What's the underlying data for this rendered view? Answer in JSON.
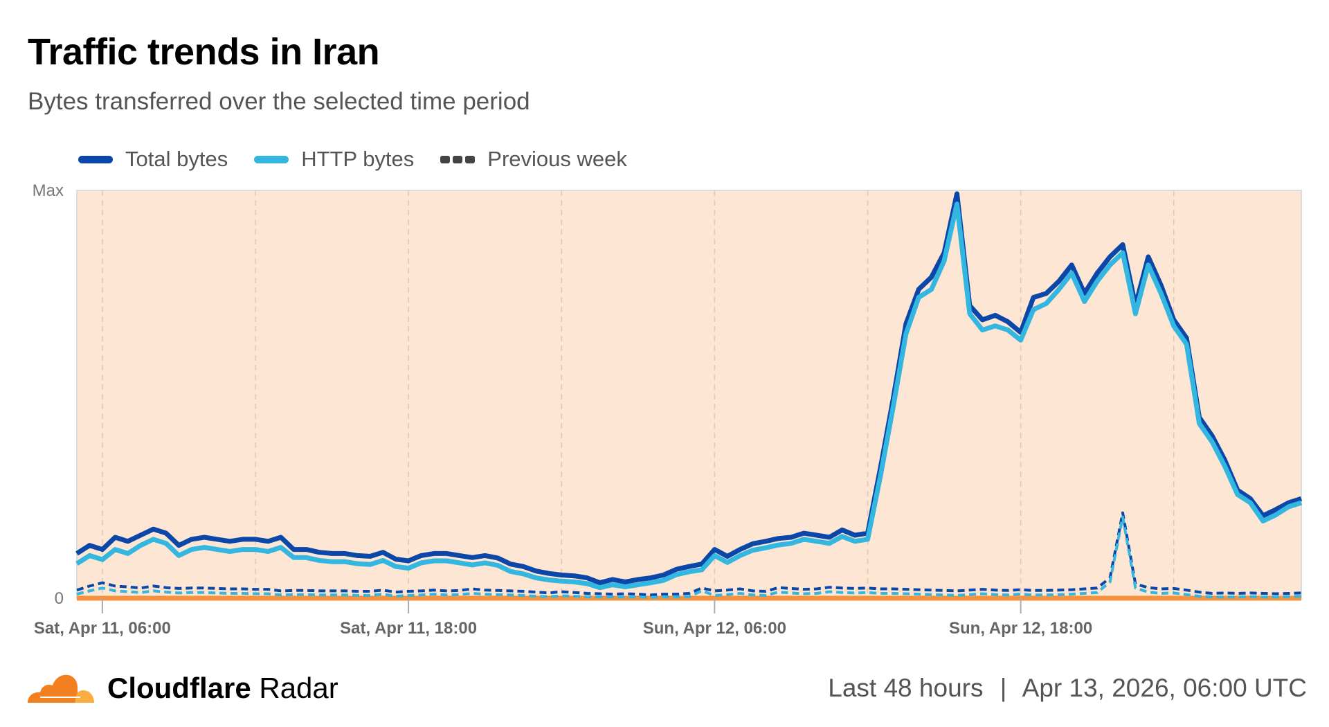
{
  "header": {
    "title": "Traffic trends in Iran",
    "subtitle": "Bytes transferred over the selected time period"
  },
  "legend": [
    {
      "label": "Total bytes",
      "color": "#0a47a8",
      "style": "solid"
    },
    {
      "label": "HTTP bytes",
      "color": "#33b6df",
      "style": "solid"
    },
    {
      "label": "Previous week",
      "color": "#444444",
      "style": "dashed"
    }
  ],
  "footer": {
    "brand_bold": "Cloudflare",
    "brand_regular": "Radar",
    "period": "Last 48 hours",
    "separator": "|",
    "timestamp": "Apr 13, 2026, 06:00 UTC"
  },
  "colors": {
    "plot_background": "#fde6d3",
    "baseline": "#f5923e",
    "gridline": "#e2c7b6",
    "logo_orange": "#f38020",
    "logo_light": "#fbad41"
  },
  "chart_data": {
    "type": "line",
    "title": "Traffic trends in Iran",
    "subtitle": "Bytes transferred over the selected time period",
    "xlabel": "",
    "ylabel": "",
    "y_tick_labels": [
      "0",
      "Max"
    ],
    "ylim": [
      0,
      100
    ],
    "y_units": "percent of max",
    "grid": "vertical dashed every 6 hours",
    "legend_position": "top-left",
    "x_tick_labels": [
      "Sat, Apr 11, 06:00",
      "Sat, Apr 11, 18:00",
      "Sun, Apr 12, 06:00",
      "Sun, Apr 12, 18:00"
    ],
    "x_ticks": [
      "Apr 11 06:00",
      "Apr 11 18:00",
      "Apr 12 06:00",
      "Apr 12 18:00"
    ],
    "x_gridlines": [
      "Apr 11 06:00",
      "Apr 11 12:00",
      "Apr 11 18:00",
      "Apr 12 00:00",
      "Apr 12 06:00",
      "Apr 12 12:00",
      "Apr 12 18:00",
      "Apr 13 00:00"
    ],
    "x": [
      "Apr 11 05:00",
      "Apr 11 05:30",
      "Apr 11 06:00",
      "Apr 11 06:30",
      "Apr 11 07:00",
      "Apr 11 07:30",
      "Apr 11 08:00",
      "Apr 11 08:30",
      "Apr 11 09:00",
      "Apr 11 09:30",
      "Apr 11 10:00",
      "Apr 11 10:30",
      "Apr 11 11:00",
      "Apr 11 11:30",
      "Apr 11 12:00",
      "Apr 11 12:30",
      "Apr 11 13:00",
      "Apr 11 13:30",
      "Apr 11 14:00",
      "Apr 11 14:30",
      "Apr 11 15:00",
      "Apr 11 15:30",
      "Apr 11 16:00",
      "Apr 11 16:30",
      "Apr 11 17:00",
      "Apr 11 17:30",
      "Apr 11 18:00",
      "Apr 11 18:30",
      "Apr 11 19:00",
      "Apr 11 19:30",
      "Apr 11 20:00",
      "Apr 11 20:30",
      "Apr 11 21:00",
      "Apr 11 21:30",
      "Apr 11 22:00",
      "Apr 11 22:30",
      "Apr 11 23:00",
      "Apr 11 23:30",
      "Apr 12 00:00",
      "Apr 12 00:30",
      "Apr 12 01:00",
      "Apr 12 01:30",
      "Apr 12 02:00",
      "Apr 12 02:30",
      "Apr 12 03:00",
      "Apr 12 03:30",
      "Apr 12 04:00",
      "Apr 12 04:30",
      "Apr 12 05:00",
      "Apr 12 05:30",
      "Apr 12 06:00",
      "Apr 12 06:30",
      "Apr 12 07:00",
      "Apr 12 07:30",
      "Apr 12 08:00",
      "Apr 12 08:30",
      "Apr 12 09:00",
      "Apr 12 09:30",
      "Apr 12 10:00",
      "Apr 12 10:30",
      "Apr 12 11:00",
      "Apr 12 11:30",
      "Apr 12 12:00",
      "Apr 12 12:30",
      "Apr 12 13:00",
      "Apr 12 13:30",
      "Apr 12 14:00",
      "Apr 12 14:30",
      "Apr 12 15:00",
      "Apr 12 15:30",
      "Apr 12 16:00",
      "Apr 12 16:30",
      "Apr 12 17:00",
      "Apr 12 17:30",
      "Apr 12 18:00",
      "Apr 12 18:30",
      "Apr 12 19:00",
      "Apr 12 19:30",
      "Apr 12 20:00",
      "Apr 12 20:30",
      "Apr 12 21:00",
      "Apr 12 21:30",
      "Apr 12 22:00",
      "Apr 12 22:30",
      "Apr 12 23:00",
      "Apr 12 23:30",
      "Apr 13 00:00",
      "Apr 13 00:30",
      "Apr 13 01:00",
      "Apr 13 01:30",
      "Apr 13 02:00",
      "Apr 13 02:30",
      "Apr 13 03:00",
      "Apr 13 03:30",
      "Apr 13 04:00",
      "Apr 13 04:30",
      "Apr 13 05:00"
    ],
    "series": [
      {
        "name": "Previous week",
        "component": "Total bytes",
        "color": "#0a47a8",
        "style": "dashed",
        "values": [
          2,
          3,
          3.8,
          3,
          2.8,
          2.5,
          3,
          2.6,
          2.4,
          2.5,
          2.5,
          2.4,
          2.3,
          2.3,
          2.2,
          2.2,
          1.8,
          1.9,
          1.9,
          1.8,
          1.8,
          1.8,
          1.7,
          1.7,
          2,
          1.5,
          1.7,
          1.8,
          2,
          1.8,
          1.9,
          2.3,
          2,
          1.9,
          1.8,
          1.7,
          1.5,
          1.3,
          1.6,
          1.4,
          1.2,
          1.1,
          1,
          1.1,
          1,
          0.8,
          1,
          1,
          1.2,
          2.5,
          1.8,
          2,
          2.3,
          1.8,
          1.7,
          2.6,
          2.4,
          2.2,
          2.3,
          2.7,
          2.5,
          2.4,
          2.5,
          2.3,
          2.3,
          2.2,
          2.1,
          2,
          1.9,
          1.8,
          2,
          2.2,
          2,
          1.9,
          2.1,
          1.9,
          1.9,
          2,
          2.1,
          2.3,
          2.5,
          5,
          21,
          3.5,
          2.6,
          2.3,
          2.4,
          2,
          1.5,
          1.2,
          1.3,
          1.2,
          1.3,
          1.2,
          1.1,
          1.2,
          1.3
        ]
      },
      {
        "name": "Previous week",
        "component": "HTTP bytes",
        "color": "#33b6df",
        "style": "dashed",
        "values": [
          1,
          1.8,
          2.5,
          1.8,
          1.6,
          1.4,
          1.8,
          1.5,
          1.3,
          1.4,
          1.4,
          1.3,
          1.2,
          1.2,
          1.1,
          1.1,
          0.8,
          0.9,
          0.9,
          0.8,
          0.8,
          0.8,
          0.7,
          0.7,
          1,
          0.5,
          0.7,
          0.8,
          1,
          0.8,
          0.9,
          1.2,
          1,
          0.9,
          0.8,
          0.7,
          0.5,
          0.4,
          0.6,
          0.5,
          0.4,
          0.3,
          0.3,
          0.3,
          0.3,
          0.2,
          0.3,
          0.3,
          0.4,
          1.8,
          0.7,
          0.9,
          1.2,
          0.8,
          0.7,
          1.5,
          1.3,
          1.1,
          1.2,
          1.6,
          1.4,
          1.3,
          1.4,
          1.2,
          1.2,
          1.1,
          1,
          0.9,
          0.8,
          0.7,
          0.9,
          1.1,
          0.9,
          0.8,
          1,
          0.8,
          0.8,
          0.9,
          1,
          1.2,
          1.4,
          4,
          20,
          2.5,
          1.5,
          1.2,
          1.3,
          0.9,
          0.5,
          0.3,
          0.3,
          0.3,
          0.4,
          0.3,
          0.3,
          0.4,
          0.5
        ]
      },
      {
        "name": "Total bytes",
        "color": "#0a47a8",
        "style": "solid",
        "values": [
          11,
          13,
          12,
          15,
          14,
          15.5,
          17,
          16,
          13,
          14.5,
          15,
          14.5,
          14,
          14.5,
          14.5,
          14,
          15,
          12,
          12,
          11.3,
          11,
          11,
          10.5,
          10.3,
          11.3,
          9.6,
          9.2,
          10.5,
          11,
          11,
          10.5,
          10,
          10.5,
          9.9,
          8.4,
          7.8,
          6.7,
          6.1,
          5.7,
          5.5,
          5,
          3.8,
          4.6,
          4,
          4.6,
          5,
          5.7,
          7.1,
          7.8,
          8.4,
          12,
          10.3,
          12,
          13.4,
          14,
          14.7,
          15,
          16,
          15.5,
          15,
          16.8,
          15.5,
          16,
          32,
          49,
          67.5,
          76,
          79,
          85,
          99.5,
          72,
          68.5,
          69.6,
          68,
          65.4,
          74,
          75,
          78,
          82,
          75,
          80,
          84,
          87,
          72,
          84,
          77,
          68.5,
          64,
          44.5,
          40,
          34,
          26.6,
          24.5,
          20.3,
          21.8,
          23.5,
          24.5
        ]
      },
      {
        "name": "HTTP bytes",
        "color": "#33b6df",
        "style": "solid",
        "values": [
          8.5,
          10.5,
          9.5,
          12,
          11,
          13,
          14.5,
          13.5,
          10.5,
          12,
          12.5,
          12,
          11.5,
          12,
          12,
          11.5,
          12.5,
          10,
          10,
          9.3,
          9,
          9,
          8.5,
          8.3,
          9.3,
          7.8,
          7.4,
          8.7,
          9.2,
          9.2,
          8.7,
          8.2,
          8.7,
          8.1,
          6.6,
          6,
          5,
          4.5,
          4.2,
          4,
          3.6,
          2.6,
          3.3,
          2.8,
          3.3,
          3.8,
          4.4,
          5.8,
          6.5,
          7,
          10.5,
          8.8,
          10.5,
          11.8,
          12.4,
          13.1,
          13.5,
          14.5,
          14,
          13.5,
          15.2,
          14,
          14.5,
          30,
          47,
          65,
          74,
          76,
          83,
          97,
          70,
          66,
          67,
          66,
          63.5,
          71,
          72.5,
          76,
          80,
          73,
          78,
          82,
          85,
          70,
          82,
          75,
          67,
          62.5,
          43,
          38.5,
          32.5,
          25.5,
          23.5,
          19,
          20.5,
          22.5,
          23.5
        ]
      }
    ]
  }
}
